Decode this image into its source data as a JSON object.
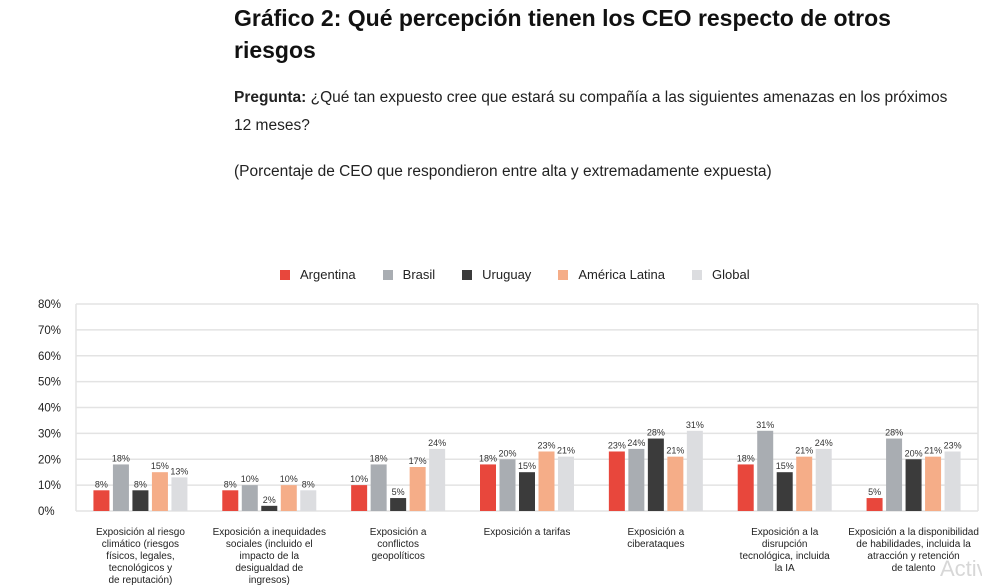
{
  "header": {
    "title": "Gráfico 2: Qué percepción tienen los CEO respecto de otros riesgos",
    "question_label": "Pregunta:",
    "question_text": "¿Qué tan expuesto cree que estará su compañía a las siguientes amenazas en los próximos 12 meses?",
    "note": "(Porcentaje de CEO que respondieron entre alta y extremadamente expuesta)"
  },
  "watermark": "Activ",
  "chart_data": {
    "type": "bar",
    "title": "",
    "xlabel": "",
    "ylabel": "",
    "ylim": [
      0,
      80
    ],
    "yticks": [
      "0%",
      "10%",
      "20%",
      "30%",
      "40%",
      "50%",
      "60%",
      "70%",
      "80%"
    ],
    "grid": true,
    "legend_position": "top-center",
    "categories": [
      "Exposición al riesgo climático (riesgos físicos, legales, tecnológicos y de reputación)",
      "Exposición a inequidades sociales (incluido el impacto de la desigualdad de ingresos)",
      "Exposición a conflictos geopolíticos",
      "Exposición a tarifas",
      "Exposición a ciberataques",
      "Exposición a la disrupción tecnológica, incluida la IA",
      "Exposición a la disponibilidad de habilidades, incluida la atracción y retención de talento"
    ],
    "category_lines": [
      [
        "Exposición al riesgo",
        "climático (riesgos",
        "físicos, legales,",
        "tecnológicos y",
        "de reputación)"
      ],
      [
        "Exposición a inequidades",
        "sociales (incluido el",
        "impacto de la",
        "desigualdad de",
        "ingresos)"
      ],
      [
        "Exposición a",
        "conflictos",
        "geopolíticos"
      ],
      [
        "Exposición a tarifas"
      ],
      [
        "Exposición a",
        "ciberataques"
      ],
      [
        "Exposición a la",
        "disrupción",
        "tecnológica, incluida",
        "la IA"
      ],
      [
        "Exposición a la disponibilidad",
        "de habilidades, incluida la",
        "atracción y retención",
        "de talento"
      ]
    ],
    "series": [
      {
        "name": "Argentina",
        "color": "#e8473c",
        "values": [
          8,
          8,
          10,
          18,
          23,
          18,
          5
        ],
        "labels": [
          "8%",
          "8%",
          "10%",
          "18%",
          "23%",
          "18%",
          "5%"
        ]
      },
      {
        "name": "Brasil",
        "color": "#a9adb2",
        "values": [
          18,
          10,
          18,
          20,
          24,
          31,
          28
        ],
        "labels": [
          "18%",
          "10%",
          "18%",
          "20%",
          "24%",
          "31%",
          "28%"
        ]
      },
      {
        "name": "Uruguay",
        "color": "#3b3b3b",
        "values": [
          8,
          2,
          5,
          15,
          28,
          15,
          20
        ],
        "labels": [
          "8%",
          "2%",
          "5%",
          "15%",
          "28%",
          "15%",
          "20%"
        ]
      },
      {
        "name": "América Latina",
        "color": "#f5ad88",
        "values": [
          15,
          10,
          17,
          23,
          21,
          21,
          21
        ],
        "labels": [
          "15%",
          "10%",
          "17%",
          "23%",
          "21%",
          "21%",
          "21%"
        ]
      },
      {
        "name": "Global",
        "color": "#dcdde0",
        "values": [
          13,
          8,
          24,
          21,
          31,
          24,
          23
        ],
        "labels": [
          "13%",
          "8%",
          "24%",
          "21%",
          "31%",
          "24%",
          "23%"
        ]
      }
    ]
  }
}
